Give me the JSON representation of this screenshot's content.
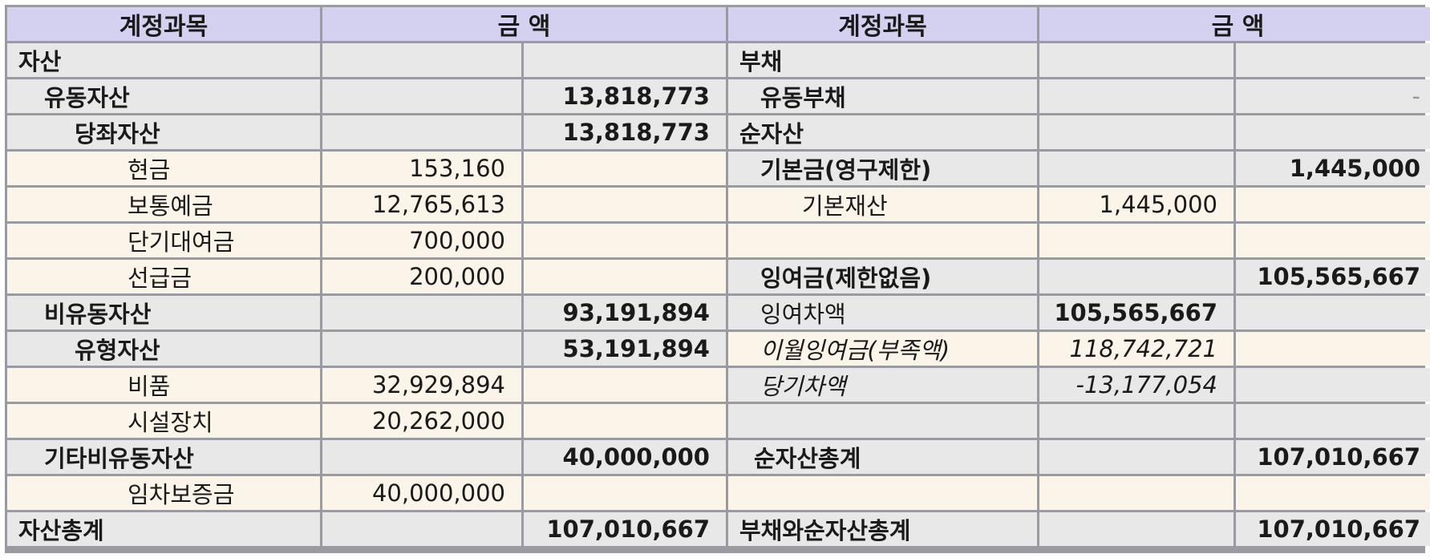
{
  "header": {
    "account_label": "계정과목",
    "amount_label": "금  액"
  },
  "assets": {
    "section": "자산",
    "current_assets": {
      "label": "유동자산",
      "amount": "13,818,773"
    },
    "quick_assets": {
      "label": "당좌자산",
      "amount": "13,818,773"
    },
    "cash": {
      "label": "현금",
      "amount": "153,160"
    },
    "deposits": {
      "label": "보통예금",
      "amount": "12,765,613"
    },
    "short_loans": {
      "label": "단기대여금",
      "amount": "700,000"
    },
    "advance_payment": {
      "label": "선급금",
      "amount": "200,000"
    },
    "noncurrent_assets": {
      "label": "비유동자산",
      "amount": "93,191,894"
    },
    "tangible_assets": {
      "label": "유형자산",
      "amount": "53,191,894"
    },
    "equipment": {
      "label": "비품",
      "amount": "32,929,894"
    },
    "facilities": {
      "label": "시설장치",
      "amount": "20,262,000"
    },
    "other_noncurrent": {
      "label": "기타비유동자산",
      "amount": "40,000,000"
    },
    "lease_deposit": {
      "label": "임차보증금",
      "amount": "40,000,000"
    },
    "total": {
      "label": "자산총계",
      "amount": "107,010,667"
    }
  },
  "liabilities": {
    "section": "부채",
    "current_liabilities": {
      "label": "유동부채",
      "amount": "-"
    },
    "net_assets_section": "순자산",
    "endowment": {
      "label": "기본금(영구제한)",
      "amount": "1,445,000"
    },
    "basic_property": {
      "label": "기본재산",
      "amount": "1,445,000"
    },
    "surplus": {
      "label": "잉여금(제한없음)",
      "amount": "105,565,667"
    },
    "surplus_balance": {
      "label": "잉여차액",
      "amount": "105,565,667"
    },
    "carried_surplus": {
      "label": "이월잉여금(부족액)",
      "amount": "118,742,721"
    },
    "current_balance": {
      "label": "당기차액",
      "amount": "-13,177,054"
    },
    "net_assets_total": {
      "label": "순자산총계",
      "amount": "107,010,667"
    },
    "grand_total": {
      "label": "부채와순자산총계",
      "amount": "107,010,667"
    }
  },
  "colors": {
    "header_bg": "#d4d0f0",
    "summary_row_bg": "#e8e8e8",
    "detail_row_bg": "#fbf4e8",
    "grid_line": "#9a9aa2"
  }
}
